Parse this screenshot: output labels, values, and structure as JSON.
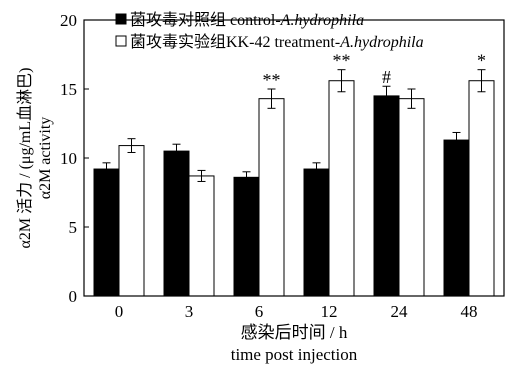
{
  "chart_data": {
    "type": "bar",
    "categories": [
      "0",
      "3",
      "6",
      "12",
      "24",
      "48"
    ],
    "series": [
      {
        "name_cn": "菌攻毒对照组",
        "name_en": "control-",
        "name_en_italic": "A.hydrophila",
        "color": "#000000",
        "values": [
          9.2,
          10.5,
          8.6,
          9.2,
          14.5,
          11.3
        ],
        "errors": [
          0.45,
          0.5,
          0.4,
          0.45,
          0.7,
          0.55
        ]
      },
      {
        "name_cn": "菌攻毒实验组KK-42",
        "name_en": "treatment-",
        "name_en_italic": "A.hydrophila",
        "color": "#ffffff",
        "values": [
          10.9,
          8.7,
          14.3,
          15.6,
          14.3,
          15.6
        ],
        "errors": [
          0.5,
          0.4,
          0.7,
          0.8,
          0.7,
          0.8
        ]
      }
    ],
    "annotations": [
      {
        "category": "6",
        "series": 1,
        "text": "**"
      },
      {
        "category": "12",
        "series": 1,
        "text": "**"
      },
      {
        "category": "24",
        "series": 0,
        "text": "#"
      },
      {
        "category": "48",
        "series": 1,
        "text": "*"
      }
    ],
    "xlabel_cn": "感染后时间 / h",
    "xlabel_en": "time post injection",
    "ylabel_cn": "α2M 活力 / (μg/mL血淋巴)",
    "ylabel_en": "α2M activity",
    "ylim": [
      0,
      20
    ],
    "yticks": [
      0,
      5,
      10,
      15,
      20
    ],
    "grid": false,
    "legend_position": "top-left inside"
  }
}
